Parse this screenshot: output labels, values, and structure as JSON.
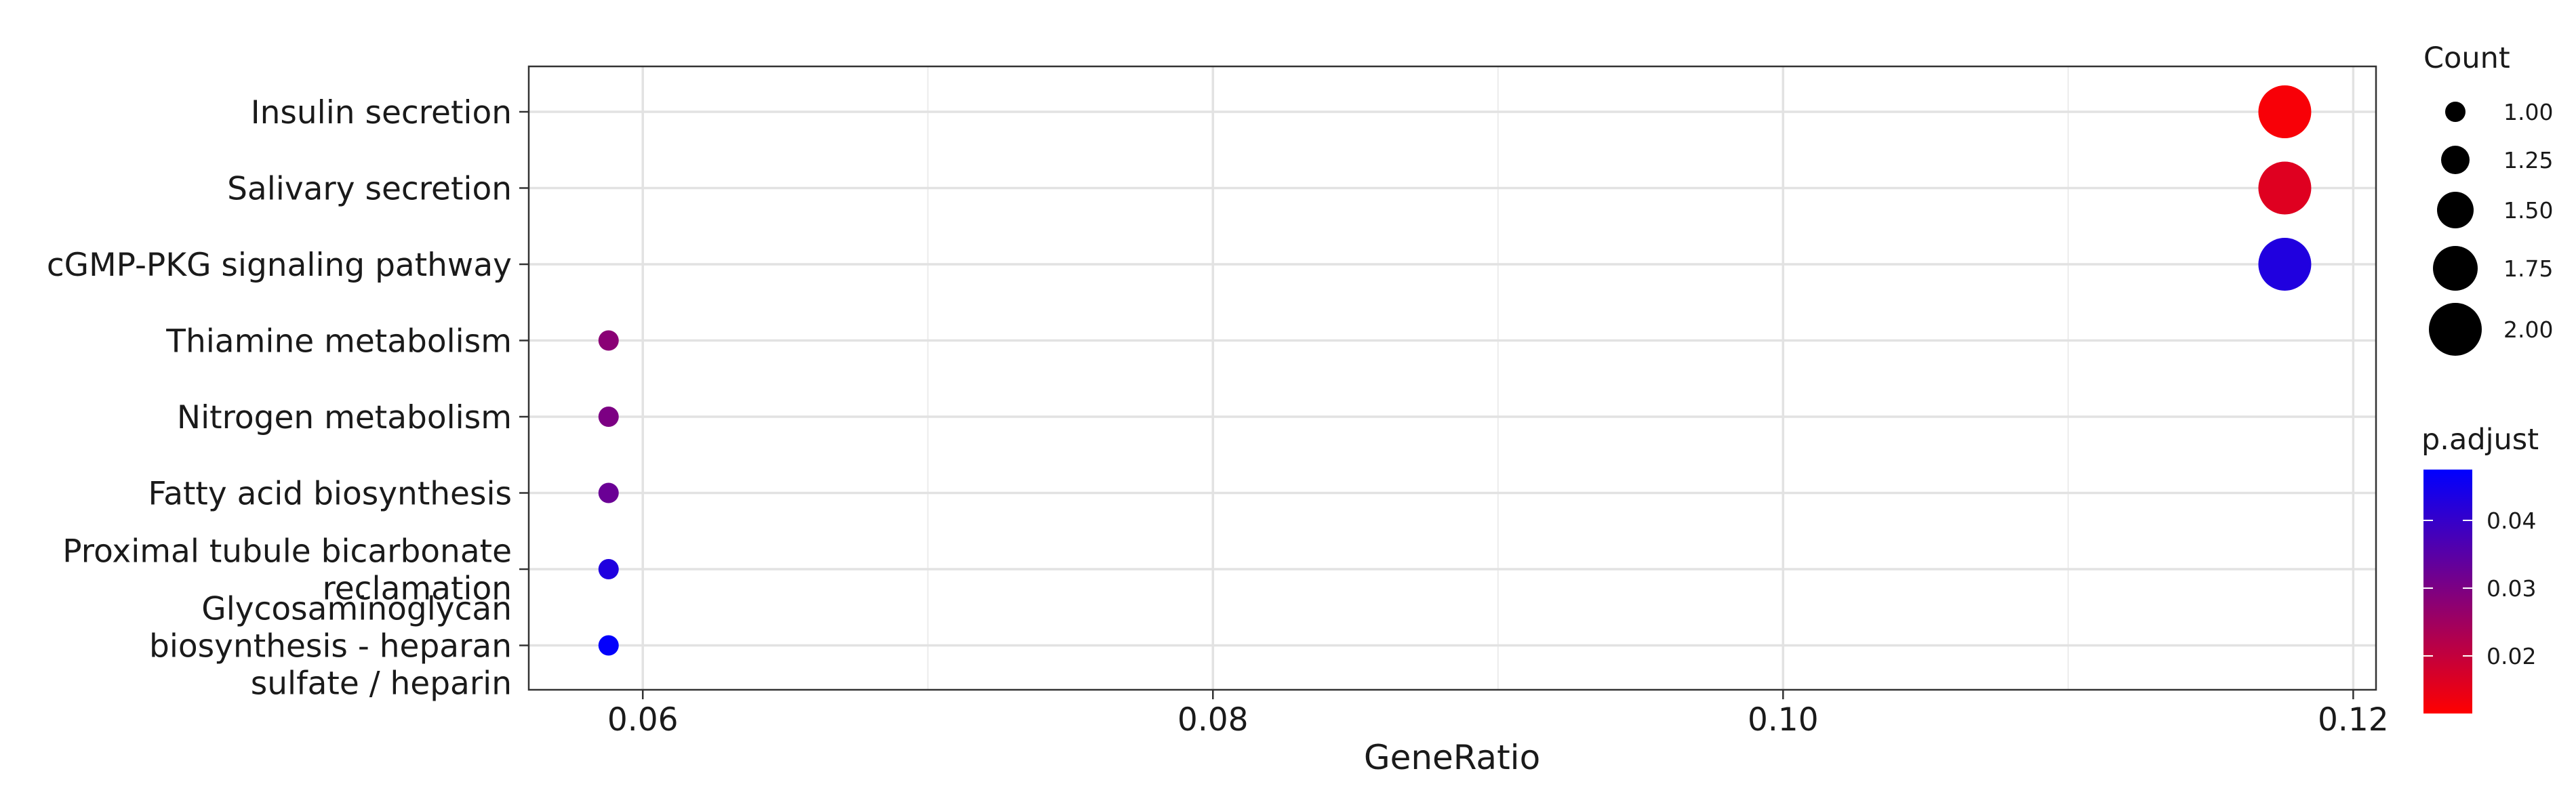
{
  "chart_data": {
    "type": "scatter",
    "xlabel": "GeneRatio",
    "ylabel": "",
    "xlim": [
      0.056,
      0.1208
    ],
    "xticks": [
      0.06,
      0.08,
      0.1,
      0.12
    ],
    "xtick_labels": [
      "0.06",
      "0.08",
      "0.10",
      "0.12"
    ],
    "grid": true,
    "categories": [
      "Insulin secretion",
      "Salivary secretion",
      "cGMP-PKG signaling pathway",
      "Thiamine metabolism",
      "Nitrogen metabolism",
      "Fatty acid biosynthesis",
      "Proximal tubule bicarbonate reclamation",
      "Glycosaminoglycan biosynthesis - heparan sulfate / heparin"
    ],
    "category_lines": [
      [
        "Insulin secretion"
      ],
      [
        "Salivary secretion"
      ],
      [
        "cGMP-PKG signaling pathway"
      ],
      [
        "Thiamine metabolism"
      ],
      [
        "Nitrogen metabolism"
      ],
      [
        "Fatty acid biosynthesis"
      ],
      [
        "Proximal tubule bicarbonate",
        "reclamation"
      ],
      [
        "Glycosaminoglycan",
        "biosynthesis - heparan",
        "sulfate / heparin"
      ]
    ],
    "points": [
      {
        "category": "Insulin secretion",
        "x": 0.1176,
        "count": 2,
        "p_adjust": 0.0125
      },
      {
        "category": "Salivary secretion",
        "x": 0.1176,
        "count": 2,
        "p_adjust": 0.016
      },
      {
        "category": "cGMP-PKG signaling pathway",
        "x": 0.1176,
        "count": 2,
        "p_adjust": 0.043
      },
      {
        "category": "Thiamine metabolism",
        "x": 0.0588,
        "count": 1,
        "p_adjust": 0.028
      },
      {
        "category": "Nitrogen metabolism",
        "x": 0.0588,
        "count": 1,
        "p_adjust": 0.03
      },
      {
        "category": "Fatty acid biosynthesis",
        "x": 0.0588,
        "count": 1,
        "p_adjust": 0.0325
      },
      {
        "category": "Proximal tubule bicarbonate reclamation",
        "x": 0.0588,
        "count": 1,
        "p_adjust": 0.043
      },
      {
        "category": "Glycosaminoglycan biosynthesis - heparan sulfate / heparin",
        "x": 0.0588,
        "count": 1,
        "p_adjust": 0.047
      }
    ],
    "legend_size": {
      "title": "Count",
      "values": [
        1.0,
        1.25,
        1.5,
        1.75,
        2.0
      ],
      "labels": [
        "1.00",
        "1.25",
        "1.50",
        "1.75",
        "2.00"
      ]
    },
    "legend_color": {
      "title": "p.adjust",
      "range": [
        0.0115,
        0.0475
      ],
      "ticks": [
        0.02,
        0.03,
        0.04
      ],
      "tick_labels": [
        "0.02",
        "0.03",
        "0.04"
      ],
      "low_color": "#ff0000",
      "high_color": "#0000ff"
    },
    "legend_placement": "right"
  }
}
